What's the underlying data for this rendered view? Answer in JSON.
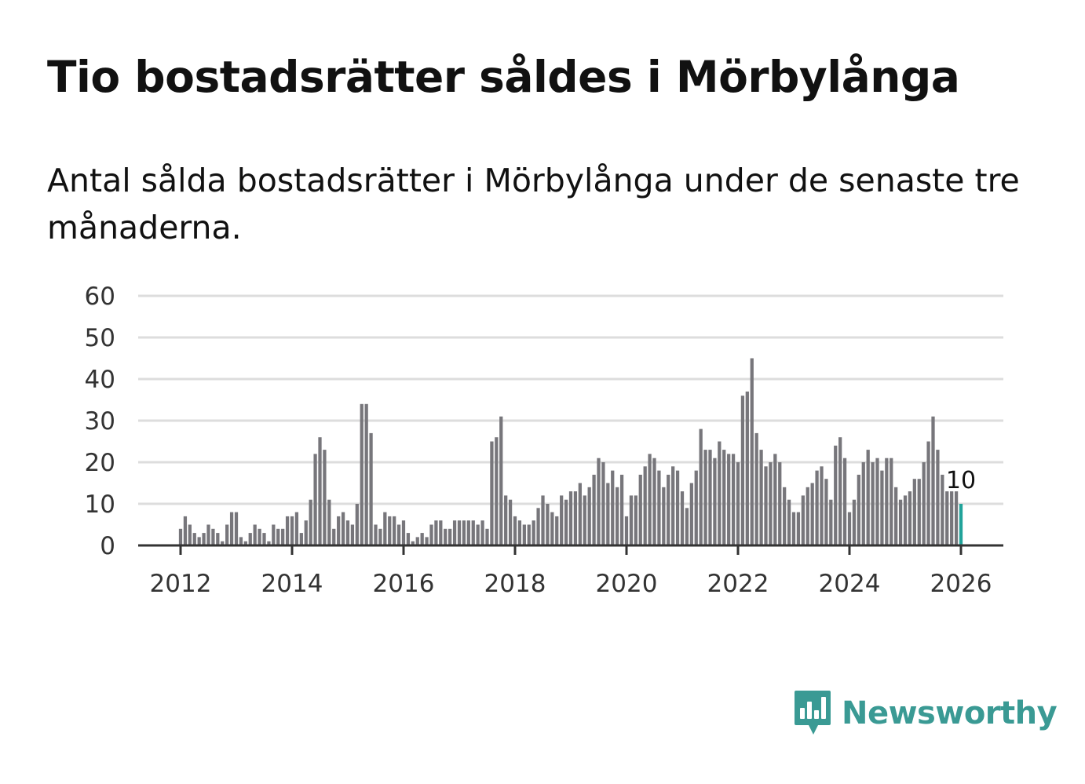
{
  "title": "Tio bostadsrätter såldes i Mörbylånga",
  "subtitle": "Antal sålda bostadsrätter i Mörbylånga under de senaste tre månaderna.",
  "brand": {
    "name": "Newsworthy",
    "color": "#3a9a94",
    "icon": "newsworthy-logo-icon"
  },
  "colors": {
    "bar": "#77767b",
    "highlight": "#21a39a",
    "grid": "#dddddd",
    "axis": "#333333"
  },
  "chart_data": {
    "type": "bar",
    "title": "Tio bostadsrätter såldes i Mörbylånga",
    "xlabel": "",
    "ylabel": "",
    "x_start": "2012-01",
    "frequency": "monthly",
    "ylim": [
      0,
      60
    ],
    "yticks": [
      0,
      10,
      20,
      30,
      40,
      50,
      60
    ],
    "ytick_labels": [
      "0",
      "10",
      "20",
      "30",
      "40",
      "50",
      "60"
    ],
    "xticks": [
      2012,
      2014,
      2016,
      2018,
      2020,
      2022,
      2024,
      2026
    ],
    "xtick_labels": [
      "2012",
      "2014",
      "2016",
      "2018",
      "2020",
      "2022",
      "2024",
      "2026"
    ],
    "highlight_annotation": "10",
    "values": [
      4,
      7,
      5,
      3,
      2,
      3,
      5,
      4,
      3,
      1,
      5,
      8,
      8,
      2,
      1,
      3,
      5,
      4,
      3,
      1,
      5,
      4,
      4,
      7,
      7,
      8,
      3,
      6,
      11,
      22,
      26,
      23,
      11,
      4,
      7,
      8,
      6,
      5,
      10,
      34,
      34,
      27,
      5,
      4,
      8,
      7,
      7,
      5,
      6,
      3,
      1,
      2,
      3,
      2,
      5,
      6,
      6,
      4,
      4,
      6,
      6,
      6,
      6,
      6,
      5,
      6,
      4,
      25,
      26,
      31,
      12,
      11,
      7,
      6,
      5,
      5,
      6,
      9,
      12,
      10,
      8,
      7,
      12,
      11,
      13,
      13,
      15,
      12,
      14,
      17,
      21,
      20,
      15,
      18,
      14,
      17,
      7,
      12,
      12,
      17,
      19,
      22,
      21,
      18,
      14,
      17,
      19,
      18,
      13,
      9,
      15,
      18,
      28,
      23,
      23,
      21,
      25,
      23,
      22,
      22,
      20,
      36,
      37,
      45,
      27,
      23,
      19,
      20,
      22,
      20,
      14,
      11,
      8,
      8,
      12,
      14,
      15,
      18,
      19,
      16,
      11,
      24,
      26,
      21,
      8,
      11,
      17,
      20,
      23,
      20,
      21,
      18,
      21,
      21,
      14,
      11,
      12,
      13,
      16,
      16,
      20,
      25,
      31,
      23,
      17,
      13,
      13,
      13,
      10
    ]
  }
}
